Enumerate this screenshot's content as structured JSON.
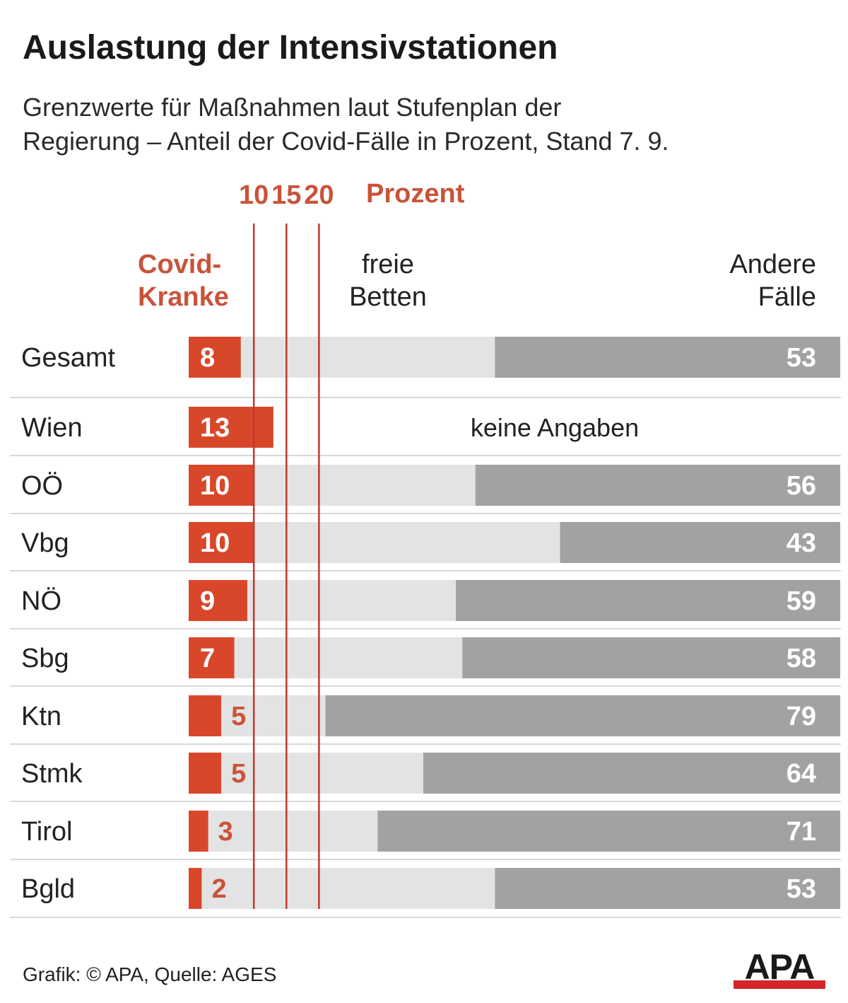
{
  "title": "Auslastung der Intensivstationen",
  "subtitle_lines": [
    "Grenzwerte für Maßnahmen laut Stufenplan der",
    "Regierung – Anteil der Covid-Fälle in Prozent, Stand 7. 9."
  ],
  "colors": {
    "covid": "#d9472b",
    "free": "#e3e3e3",
    "other": "#a2a2a2",
    "threshold": "#c0392b",
    "accent_text": "#c9533a",
    "separator": "#d8d8d8"
  },
  "chart_data": {
    "type": "bar",
    "stacked": true,
    "orientation": "horizontal",
    "unit_label": "Prozent",
    "thresholds": [
      10,
      15,
      20
    ],
    "column_headers": {
      "covid": [
        "Covid-",
        "Kranke"
      ],
      "free": [
        "freie",
        "Betten"
      ],
      "other": [
        "Andere",
        "Fälle"
      ]
    },
    "categories": [
      "Gesamt",
      "Wien",
      "OÖ",
      "Vbg",
      "NÖ",
      "Sbg",
      "Ktn",
      "Stmk",
      "Tirol",
      "Bgld"
    ],
    "series": [
      {
        "name": "Covid-Kranke",
        "values": [
          8,
          13,
          10,
          10,
          9,
          7,
          5,
          5,
          3,
          2
        ]
      },
      {
        "name": "freie Betten",
        "values": [
          39,
          null,
          34,
          47,
          32,
          35,
          16,
          31,
          26,
          45
        ]
      },
      {
        "name": "Andere Fälle",
        "values": [
          53,
          null,
          56,
          43,
          59,
          58,
          79,
          64,
          71,
          53
        ]
      }
    ],
    "notes": {
      "Wien": "keine Angaben"
    },
    "xlim": [
      0,
      100
    ]
  },
  "footer": {
    "credit": "Grafik: © APA, Quelle: AGES"
  },
  "logo": {
    "text": "APA"
  }
}
